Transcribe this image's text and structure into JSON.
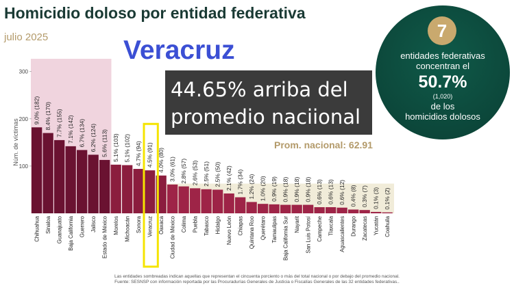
{
  "header": {
    "title": "Homicidio doloso por entidad federativa",
    "subtitle": "julio 2025",
    "state": "Veracruz",
    "highlight_line1": "44.65% arriba del",
    "highlight_line2": "promedio naciional",
    "prom_label": "Prom. nacional: 62.91"
  },
  "callout": {
    "number": "7",
    "line1": "entidades federativas",
    "line2": "concentran el",
    "percent": "50.7%",
    "count": "(1,020)",
    "line3": "de los",
    "line4": "homicidios dolosos"
  },
  "footnotes": {
    "line1": "Las entidades sombreadas indican aquellas que representan el cincuenta porciento o más del total nacional o por debajo del promedio nacional.",
    "line2": "Fuente: SESNSP con información reportada por las Procuradurías Generales de Justicia o Fiscalías Generales de las 32 entidades federativas.."
  },
  "chart_data": {
    "type": "bar",
    "ylabel": "Núm. de víctimas",
    "ylim": [
      0,
      330
    ],
    "yticks": [
      100,
      200,
      300
    ],
    "average": 62.91,
    "highlighted": "Veracruz",
    "categories": [
      "Chihuahua",
      "Sinaloa",
      "Guanajuato",
      "Baja California",
      "Guerrero",
      "Jalisco",
      "Estado de México",
      "Morelos",
      "Michoacán",
      "Sonora",
      "Veracruz",
      "Oaxaca",
      "Ciudad de México",
      "Colima",
      "Puebla",
      "Tabasco",
      "Hidalgo",
      "Nuevo León",
      "Chiapas",
      "Quintana Roo",
      "Querétaro",
      "Tamaulipas",
      "Baja California Sur",
      "Nayarit",
      "San Luis Potosí",
      "Campeche",
      "Tlaxcala",
      "Aguascalientes",
      "Durango",
      "Zacatecas",
      "Yucatán",
      "Coahuila"
    ],
    "values": [
      182,
      170,
      155,
      142,
      134,
      124,
      113,
      103,
      102,
      94,
      91,
      80,
      61,
      57,
      53,
      51,
      50,
      42,
      34,
      24,
      20,
      19,
      18,
      18,
      18,
      13,
      13,
      12,
      8,
      7,
      3,
      2
    ],
    "labels": [
      "9.0% (182)",
      "8.4% (170)",
      "7.7% (155)",
      "7.1% (142)",
      "6.7% (134)",
      "6.2% (124)",
      "5.6% (113)",
      "5.1% (103)",
      "5.1% (102)",
      "4.7% (94)",
      "4.5% (91)",
      "4.0% (80)",
      "3.0% (61)",
      "2.8% (57)",
      "2.6% (53)",
      "2.5% (51)",
      "2.5% (50)",
      "2.1% (42)",
      "1.7% (34)",
      "1.2% (24)",
      "1.0% (20)",
      "0.9% (19)",
      "0.9% (18)",
      "0.9% (18)",
      "0.9% (18)",
      "0.6% (13)",
      "0.6% (13)",
      "0.6% (12)",
      "0.4% (8)",
      "0.3% (7)",
      "0.1% (3)",
      "0.1% (2)"
    ],
    "colors": {
      "bar_top": "#6a1231",
      "bar_mid": "#8b1d3e",
      "bar_low": "#9e2447",
      "shade_top": "#f0d4de",
      "shade_low": "#f1ecd9",
      "highlight_box": "#f5e400"
    }
  }
}
